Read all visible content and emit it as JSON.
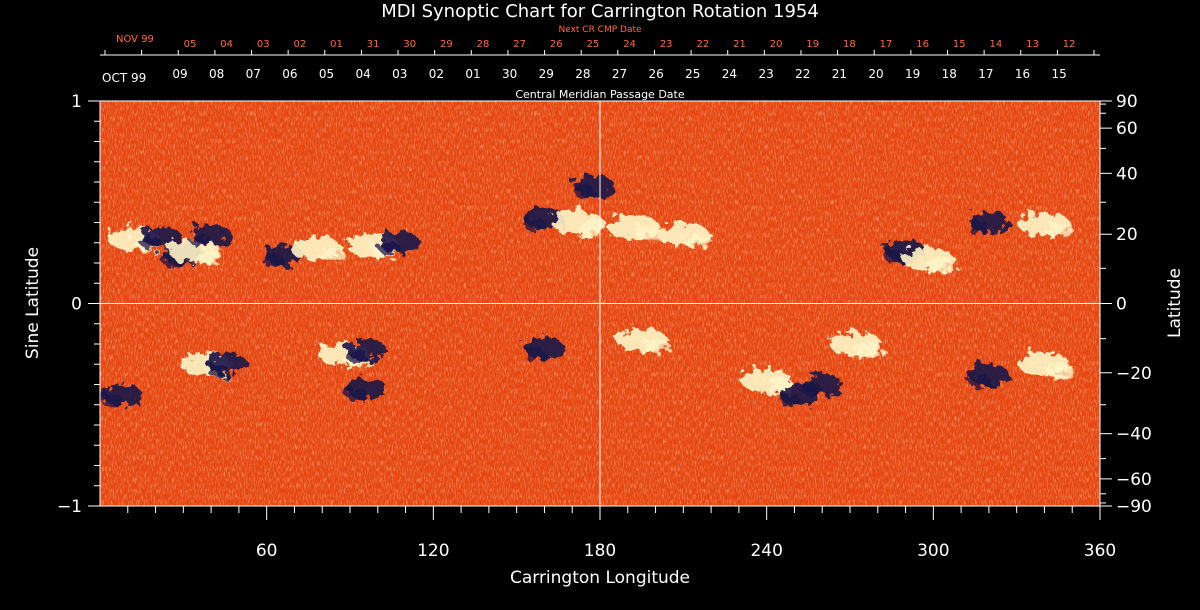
{
  "chart_data": {
    "type": "heatmap",
    "title": "MDI Synoptic Chart for Carrington Rotation 1954",
    "xlabel": "Carrington Longitude",
    "ylabel_left": "Sine Latitude",
    "ylabel_right": "Latitude",
    "xlim": [
      0,
      360
    ],
    "ylim": [
      -1,
      1
    ],
    "x_ticks": [
      60,
      120,
      180,
      240,
      300,
      360
    ],
    "y_ticks_left": [
      "1",
      "0",
      "−1"
    ],
    "y_ticks_right": [
      90,
      60,
      40,
      20,
      0,
      -20,
      -40,
      -60,
      -90
    ],
    "y_tick_labels_right": [
      "90",
      "60",
      "40",
      "20",
      "0",
      "−20",
      "−40",
      "−60",
      "−90"
    ],
    "top_axis": {
      "label": "Central Meridian Passage Date",
      "start_label": "OCT 99",
      "dates": [
        "09",
        "08",
        "07",
        "06",
        "05",
        "04",
        "03",
        "02",
        "01",
        "30",
        "29",
        "28",
        "27",
        "26",
        "25",
        "24",
        "23",
        "22",
        "21",
        "20",
        "19",
        "18",
        "17",
        "16",
        "15"
      ]
    },
    "next_axis": {
      "label": "Next CR CMP Date",
      "start_label": "NOV 99",
      "dates": [
        "05",
        "04",
        "03",
        "02",
        "01",
        "31",
        "30",
        "29",
        "28",
        "27",
        "26",
        "25",
        "24",
        "23",
        "22",
        "21",
        "20",
        "19",
        "18",
        "17",
        "16",
        "15",
        "14",
        "13",
        "12"
      ]
    },
    "colors": {
      "background": "#e8450f",
      "positive_field": "#fff6c8",
      "negative_field": "#1a1448",
      "grid": "#ffffff"
    },
    "active_regions": [
      {
        "lon": 12,
        "sinlat": 0.32,
        "polarity": "positive"
      },
      {
        "lon": 22,
        "sinlat": 0.33,
        "polarity": "negative"
      },
      {
        "lon": 30,
        "sinlat": 0.24,
        "polarity": "negative"
      },
      {
        "lon": 34,
        "sinlat": 0.26,
        "polarity": "positive"
      },
      {
        "lon": 40,
        "sinlat": 0.34,
        "polarity": "negative"
      },
      {
        "lon": 66,
        "sinlat": 0.24,
        "polarity": "negative"
      },
      {
        "lon": 78,
        "sinlat": 0.27,
        "polarity": "positive"
      },
      {
        "lon": 98,
        "sinlat": 0.29,
        "polarity": "positive"
      },
      {
        "lon": 108,
        "sinlat": 0.3,
        "polarity": "negative"
      },
      {
        "lon": 160,
        "sinlat": 0.42,
        "polarity": "negative"
      },
      {
        "lon": 172,
        "sinlat": 0.4,
        "polarity": "positive"
      },
      {
        "lon": 178,
        "sinlat": 0.58,
        "polarity": "negative"
      },
      {
        "lon": 192,
        "sinlat": 0.38,
        "polarity": "positive"
      },
      {
        "lon": 210,
        "sinlat": 0.34,
        "polarity": "positive"
      },
      {
        "lon": 290,
        "sinlat": 0.26,
        "polarity": "negative"
      },
      {
        "lon": 298,
        "sinlat": 0.22,
        "polarity": "positive"
      },
      {
        "lon": 320,
        "sinlat": 0.4,
        "polarity": "negative"
      },
      {
        "lon": 340,
        "sinlat": 0.39,
        "polarity": "positive"
      },
      {
        "lon": 8,
        "sinlat": -0.45,
        "polarity": "negative"
      },
      {
        "lon": 38,
        "sinlat": -0.3,
        "polarity": "positive"
      },
      {
        "lon": 46,
        "sinlat": -0.3,
        "polarity": "negative"
      },
      {
        "lon": 88,
        "sinlat": -0.25,
        "polarity": "positive"
      },
      {
        "lon": 96,
        "sinlat": -0.23,
        "polarity": "negative"
      },
      {
        "lon": 96,
        "sinlat": -0.42,
        "polarity": "negative"
      },
      {
        "lon": 160,
        "sinlat": -0.22,
        "polarity": "negative"
      },
      {
        "lon": 195,
        "sinlat": -0.18,
        "polarity": "positive"
      },
      {
        "lon": 240,
        "sinlat": -0.38,
        "polarity": "positive"
      },
      {
        "lon": 252,
        "sinlat": -0.45,
        "polarity": "negative"
      },
      {
        "lon": 260,
        "sinlat": -0.4,
        "polarity": "negative"
      },
      {
        "lon": 272,
        "sinlat": -0.2,
        "polarity": "positive"
      },
      {
        "lon": 320,
        "sinlat": -0.35,
        "polarity": "negative"
      },
      {
        "lon": 340,
        "sinlat": -0.3,
        "polarity": "positive"
      }
    ]
  }
}
